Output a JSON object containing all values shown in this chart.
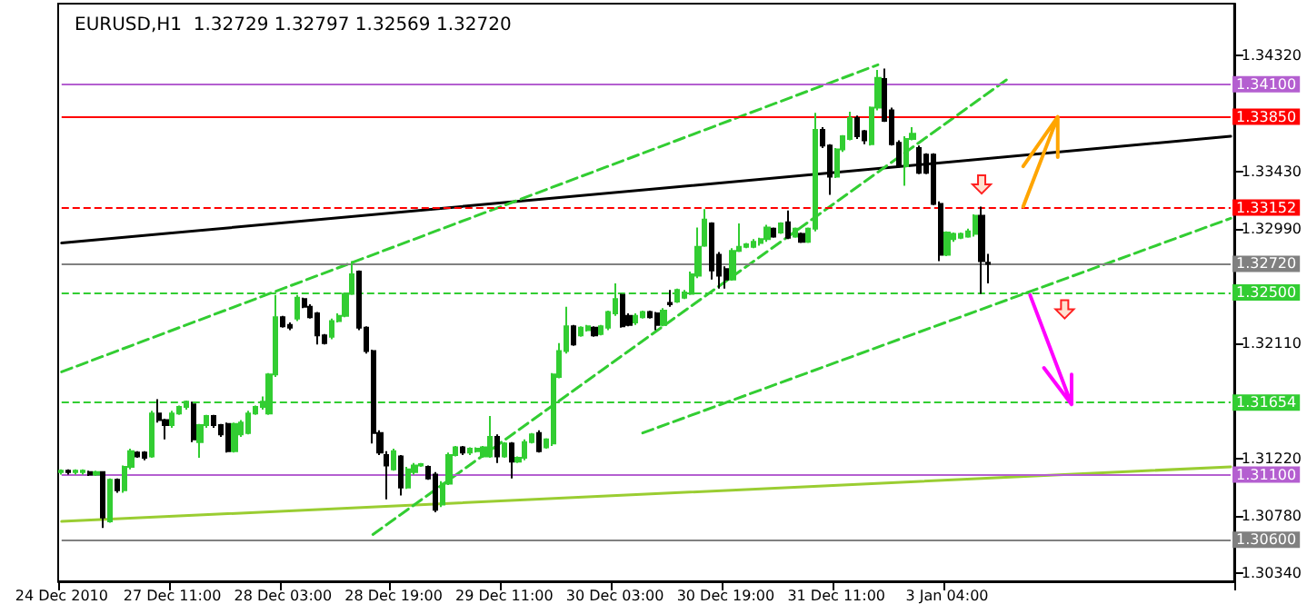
{
  "chart_data": {
    "type": "candlestick",
    "title": "EURUSD,H1  1.32729 1.32797 1.32569 1.32720",
    "categories": [
      "24 Dec 2010",
      null,
      null,
      null,
      null,
      null,
      null,
      null,
      null,
      null,
      null,
      null,
      null,
      null,
      null,
      null,
      "27 Dec 11:00",
      null,
      null,
      null,
      null,
      null,
      null,
      null,
      null,
      null,
      null,
      null,
      null,
      null,
      null,
      null,
      "28 Dec 03:00",
      null,
      null,
      null,
      null,
      null,
      null,
      null,
      null,
      null,
      null,
      null,
      null,
      null,
      null,
      null,
      "28 Dec 19:00",
      null,
      null,
      null,
      null,
      null,
      null,
      null,
      null,
      null,
      null,
      null,
      null,
      null,
      null,
      null,
      "29 Dec 11:00",
      null,
      null,
      null,
      null,
      null,
      null,
      null,
      null,
      null,
      null,
      null,
      null,
      null,
      null,
      null,
      "30 Dec 03:00",
      null,
      null,
      null,
      null,
      null,
      null,
      null,
      null,
      null,
      null,
      null,
      null,
      null,
      null,
      null,
      "30 Dec 19:00",
      null,
      null,
      null,
      null,
      null,
      null,
      null,
      null,
      null,
      null,
      null,
      null,
      null,
      null,
      null,
      "31 Dec 11:00",
      null,
      null,
      null,
      null,
      null,
      null,
      null,
      null,
      null,
      null,
      null,
      null,
      null,
      null,
      null,
      "3 Jan 04:00",
      null,
      null,
      null,
      null,
      null,
      null,
      null,
      null,
      null,
      null,
      null,
      null,
      null,
      null,
      null,
      null,
      null,
      null,
      null,
      null,
      null,
      null,
      null,
      null,
      null,
      null,
      null,
      null,
      null,
      null,
      null,
      null,
      null,
      null,
      null,
      null,
      null,
      null,
      null,
      null,
      null
    ],
    "ohlc": [
      [
        1.3112,
        1.3114,
        1.311,
        1.3113
      ],
      [
        1.3113,
        1.3114,
        1.311,
        1.3112
      ],
      [
        1.3112,
        1.3114,
        1.311,
        1.3113
      ],
      [
        1.3112,
        1.3114,
        1.311,
        1.3113
      ],
      [
        1.3112,
        1.3113,
        1.3109,
        1.311
      ],
      [
        1.311,
        1.3113,
        1.3109,
        1.3112
      ],
      [
        1.3112,
        1.3112,
        1.3069,
        1.3077
      ],
      [
        1.3074,
        1.3107,
        1.3073,
        1.3106
      ],
      [
        1.3106,
        1.3107,
        1.3096,
        1.3098
      ],
      [
        1.3098,
        1.3117,
        1.3096,
        1.3116
      ],
      [
        1.3116,
        1.313,
        1.3114,
        1.3128
      ],
      [
        1.3127,
        1.3128,
        1.3123,
        1.3124
      ],
      [
        1.3127,
        1.3128,
        1.3121,
        1.3123
      ],
      [
        1.3124,
        1.3159,
        1.3123,
        1.3157
      ],
      [
        1.3157,
        1.3168,
        1.315,
        1.3152
      ],
      [
        1.3152,
        1.3153,
        1.3137,
        1.3148
      ],
      [
        1.3148,
        1.3159,
        1.3146,
        1.3157
      ],
      [
        1.3157,
        1.3163,
        1.3156,
        1.3162
      ],
      [
        1.3162,
        1.3167,
        1.316,
        1.3166
      ],
      [
        1.3164,
        1.3166,
        1.3135,
        1.3137
      ],
      [
        1.3135,
        1.3149,
        1.3123,
        1.3148
      ],
      [
        1.3148,
        1.3156,
        1.3146,
        1.3155
      ],
      [
        1.3155,
        1.3156,
        1.3146,
        1.3148
      ],
      [
        1.3148,
        1.3149,
        1.3139,
        1.3141
      ],
      [
        1.3149,
        1.315,
        1.3127,
        1.3128
      ],
      [
        1.3128,
        1.315,
        1.3127,
        1.3149
      ],
      [
        1.3141,
        1.3152,
        1.3139,
        1.315
      ],
      [
        1.3142,
        1.3159,
        1.3141,
        1.3157
      ],
      [
        1.3157,
        1.3163,
        1.3156,
        1.3162
      ],
      [
        1.3162,
        1.317,
        1.316,
        1.3166
      ],
      [
        1.3157,
        1.3188,
        1.3156,
        1.3187
      ],
      [
        1.3187,
        1.3248,
        1.3185,
        1.3231
      ],
      [
        1.3231,
        1.3232,
        1.3223,
        1.3224
      ],
      [
        1.3225,
        1.3227,
        1.3221,
        1.3223
      ],
      [
        1.323,
        1.3248,
        1.3228,
        1.3246
      ],
      [
        1.3245,
        1.3246,
        1.3238,
        1.3239
      ],
      [
        1.3239,
        1.3241,
        1.323,
        1.3231
      ],
      [
        1.3234,
        1.3235,
        1.321,
        1.3217
      ],
      [
        1.3217,
        1.3218,
        1.321,
        1.3211
      ],
      [
        1.3216,
        1.323,
        1.3214,
        1.3228
      ],
      [
        1.3228,
        1.3234,
        1.3227,
        1.3232
      ],
      [
        1.3232,
        1.325,
        1.3231,
        1.3249
      ],
      [
        1.3249,
        1.3274,
        1.3248,
        1.3264
      ],
      [
        1.3266,
        1.3267,
        1.3221,
        1.3223
      ],
      [
        1.3223,
        1.3224,
        1.3203,
        1.3205
      ],
      [
        1.3205,
        1.3206,
        1.3134,
        1.3142
      ],
      [
        1.3142,
        1.3144,
        1.3125,
        1.3127
      ],
      [
        1.3125,
        1.3128,
        1.3091,
        1.3117
      ],
      [
        1.3114,
        1.313,
        1.3113,
        1.3128
      ],
      [
        1.3124,
        1.3125,
        1.3094,
        1.31
      ],
      [
        1.31,
        1.3116,
        1.3099,
        1.3114
      ],
      [
        1.3112,
        1.3119,
        1.311,
        1.3117
      ],
      [
        1.3117,
        1.3119,
        1.3116,
        1.3118
      ],
      [
        1.3116,
        1.3117,
        1.3106,
        1.3107
      ],
      [
        1.311,
        1.3112,
        1.3081,
        1.3083
      ],
      [
        1.3087,
        1.3105,
        1.3085,
        1.3103
      ],
      [
        1.3103,
        1.3127,
        1.3102,
        1.3125
      ],
      [
        1.3125,
        1.3132,
        1.3124,
        1.3131
      ],
      [
        1.3131,
        1.3132,
        1.3125,
        1.3127
      ],
      [
        1.3127,
        1.3131,
        1.3125,
        1.313
      ],
      [
        1.3128,
        1.3131,
        1.3127,
        1.313
      ],
      [
        1.3124,
        1.3132,
        1.3123,
        1.3131
      ],
      [
        1.3124,
        1.3155,
        1.3123,
        1.3139
      ],
      [
        1.3139,
        1.3141,
        1.3119,
        1.3124
      ],
      [
        1.3124,
        1.3135,
        1.3123,
        1.3134
      ],
      [
        1.3134,
        1.3135,
        1.3107,
        1.312
      ],
      [
        1.312,
        1.3124,
        1.3119,
        1.3123
      ],
      [
        1.3123,
        1.3137,
        1.3121,
        1.3135
      ],
      [
        1.3135,
        1.3142,
        1.3134,
        1.3141
      ],
      [
        1.3142,
        1.3144,
        1.3127,
        1.3128
      ],
      [
        1.3131,
        1.3138,
        1.313,
        1.3137
      ],
      [
        1.3134,
        1.3188,
        1.3132,
        1.3187
      ],
      [
        1.3185,
        1.3211,
        1.3184,
        1.3205
      ],
      [
        1.3205,
        1.3239,
        1.3203,
        1.3224
      ],
      [
        1.3224,
        1.3225,
        1.3209,
        1.321
      ],
      [
        1.3217,
        1.3224,
        1.3216,
        1.3223
      ],
      [
        1.3221,
        1.3225,
        1.322,
        1.3224
      ],
      [
        1.3223,
        1.3224,
        1.3216,
        1.3217
      ],
      [
        1.3218,
        1.3225,
        1.3217,
        1.3224
      ],
      [
        1.3223,
        1.3236,
        1.3221,
        1.3235
      ],
      [
        1.3234,
        1.3257,
        1.3232,
        1.3245
      ],
      [
        1.3248,
        1.3249,
        1.3223,
        1.3224
      ],
      [
        1.3232,
        1.3234,
        1.3224,
        1.3225
      ],
      [
        1.3227,
        1.3234,
        1.3225,
        1.3232
      ],
      [
        1.3231,
        1.3236,
        1.323,
        1.3235
      ],
      [
        1.3235,
        1.3236,
        1.323,
        1.3231
      ],
      [
        1.3234,
        1.3235,
        1.3221,
        1.3225
      ],
      [
        1.3225,
        1.3238,
        1.3224,
        1.3236
      ],
      [
        1.3242,
        1.3252,
        1.3239,
        1.3241
      ],
      [
        1.3243,
        1.3253,
        1.3242,
        1.3252
      ],
      [
        1.3246,
        1.3252,
        1.3245,
        1.325
      ],
      [
        1.3249,
        1.3266,
        1.3248,
        1.3264
      ],
      [
        1.3263,
        1.33,
        1.3261,
        1.3285
      ],
      [
        1.3286,
        1.3314,
        1.3285,
        1.3306
      ],
      [
        1.3303,
        1.3304,
        1.326,
        1.3267
      ],
      [
        1.3279,
        1.3281,
        1.3253,
        1.3263
      ],
      [
        1.3268,
        1.327,
        1.3253,
        1.326
      ],
      [
        1.326,
        1.3284,
        1.3259,
        1.3282
      ],
      [
        1.3282,
        1.3303,
        1.3281,
        1.3285
      ],
      [
        1.3285,
        1.3288,
        1.3284,
        1.3287
      ],
      [
        1.3285,
        1.3291,
        1.3284,
        1.3289
      ],
      [
        1.3288,
        1.3292,
        1.3286,
        1.3291
      ],
      [
        1.3291,
        1.3302,
        1.3289,
        1.33
      ],
      [
        1.3299,
        1.33,
        1.3292,
        1.3293
      ],
      [
        1.3296,
        1.3304,
        1.3295,
        1.3303
      ],
      [
        1.3304,
        1.3313,
        1.3291,
        1.3292
      ],
      [
        1.3293,
        1.33,
        1.3292,
        1.3299
      ],
      [
        1.3295,
        1.3296,
        1.3288,
        1.3289
      ],
      [
        1.3289,
        1.33,
        1.3288,
        1.3299
      ],
      [
        1.3299,
        1.3388,
        1.3297,
        1.3375
      ],
      [
        1.3375,
        1.3377,
        1.3361,
        1.3363
      ],
      [
        1.3363,
        1.3364,
        1.3325,
        1.3339
      ],
      [
        1.3339,
        1.3361,
        1.3338,
        1.336
      ],
      [
        1.336,
        1.3371,
        1.3358,
        1.337
      ],
      [
        1.3368,
        1.3389,
        1.3367,
        1.3384
      ],
      [
        1.3384,
        1.3386,
        1.3368,
        1.337
      ],
      [
        1.3374,
        1.3375,
        1.3364,
        1.3367
      ],
      [
        1.3364,
        1.3393,
        1.3363,
        1.3392
      ],
      [
        1.3392,
        1.3421,
        1.339,
        1.3415
      ],
      [
        1.3414,
        1.3422,
        1.3381,
        1.3382
      ],
      [
        1.339,
        1.3392,
        1.3363,
        1.3364
      ],
      [
        1.3365,
        1.3367,
        1.3346,
        1.3347
      ],
      [
        1.3347,
        1.337,
        1.3332,
        1.3368
      ],
      [
        1.3368,
        1.3377,
        1.3367,
        1.3372
      ],
      [
        1.3361,
        1.3363,
        1.3341,
        1.3342
      ],
      [
        1.3356,
        1.3357,
        1.3341,
        1.3342
      ],
      [
        1.3356,
        1.3357,
        1.3317,
        1.3318
      ],
      [
        1.3318,
        1.332,
        1.3274,
        1.3279
      ],
      [
        1.3279,
        1.3297,
        1.3278,
        1.3296
      ],
      [
        1.3291,
        1.3296,
        1.3289,
        1.3295
      ],
      [
        1.3292,
        1.3296,
        1.3291,
        1.3295
      ],
      [
        1.3293,
        1.3299,
        1.3292,
        1.3297
      ],
      [
        1.3295,
        1.331,
        1.3293,
        1.3309
      ],
      [
        1.3309,
        1.3316,
        1.3249,
        1.3274
      ],
      [
        1.32729,
        1.32797,
        1.32569,
        1.3272
      ],
      null,
      null,
      null,
      null,
      null,
      null,
      null,
      null,
      null,
      null,
      null,
      null,
      null,
      null,
      null,
      null,
      null,
      null,
      null,
      null,
      null,
      null,
      null,
      null,
      null,
      null,
      null,
      null,
      null,
      null,
      null,
      null,
      null,
      null,
      null
    ],
    "colors": [
      "#32cd32",
      "#000000",
      "#32cd32",
      "#32cd32",
      "#000000",
      "#32cd32",
      "#000000",
      "#32cd32",
      "#000000",
      "#32cd32",
      "#32cd32",
      "#000000",
      "#000000",
      "#32cd32",
      "#000000",
      "#000000",
      "#32cd32",
      "#32cd32",
      "#32cd32",
      "#000000",
      "#32cd32",
      "#32cd32",
      "#000000",
      "#000000",
      "#000000",
      "#32cd32",
      "#32cd32",
      "#32cd32",
      "#32cd32",
      "#32cd32",
      "#32cd32",
      "#32cd32",
      "#000000",
      "#000000",
      "#32cd32",
      "#000000",
      "#000000",
      "#000000",
      "#000000",
      "#32cd32",
      "#32cd32",
      "#32cd32",
      "#32cd32",
      "#000000",
      "#000000",
      "#000000",
      "#000000",
      "#000000",
      "#32cd32",
      "#000000",
      "#32cd32",
      "#32cd32",
      "#32cd32",
      "#000000",
      "#000000",
      "#32cd32",
      "#32cd32",
      "#32cd32",
      "#000000",
      "#32cd32",
      "#32cd32",
      "#32cd32",
      "#32cd32",
      "#000000",
      "#32cd32",
      "#000000",
      "#32cd32",
      "#32cd32",
      "#32cd32",
      "#000000",
      "#32cd32",
      "#32cd32",
      "#32cd32",
      "#32cd32",
      "#000000",
      "#32cd32",
      "#32cd32",
      "#000000",
      "#32cd32",
      "#32cd32",
      "#32cd32",
      "#000000",
      "#000000",
      "#32cd32",
      "#32cd32",
      "#000000",
      "#000000",
      "#32cd32",
      "#000000",
      "#32cd32",
      "#32cd32",
      "#32cd32",
      "#32cd32",
      "#32cd32",
      "#000000",
      "#000000",
      "#000000",
      "#32cd32",
      "#32cd32",
      "#32cd32",
      "#32cd32",
      "#32cd32",
      "#32cd32",
      "#000000",
      "#32cd32",
      "#000000",
      "#32cd32",
      "#000000",
      "#32cd32",
      "#32cd32",
      "#000000",
      "#000000",
      "#32cd32",
      "#32cd32",
      "#32cd32",
      "#000000",
      "#000000",
      "#32cd32",
      "#32cd32",
      "#000000",
      "#000000",
      "#000000",
      "#32cd32",
      "#32cd32",
      "#000000",
      "#000000",
      "#000000",
      "#000000",
      "#32cd32",
      "#32cd32",
      "#32cd32",
      "#32cd32",
      "#32cd32",
      "#000000",
      "#000000",
      null,
      null,
      null,
      null,
      null,
      null,
      null,
      null,
      null,
      null,
      null,
      null,
      null,
      null,
      null,
      null,
      null,
      null,
      null,
      null,
      null,
      null,
      null,
      null,
      null,
      null,
      null,
      null,
      null,
      null,
      null,
      null,
      null,
      null,
      null
    ],
    "series": [
      {
        "type": "line",
        "color": "#000000",
        "line_style": "solid",
        "values": [
          1.3288,
          null,
          null,
          null,
          null,
          null,
          null,
          null,
          null,
          null,
          null,
          null,
          null,
          null,
          null,
          null,
          null,
          null,
          null,
          null,
          null,
          null,
          null,
          null,
          null,
          null,
          null,
          null,
          null,
          null,
          null,
          null,
          null,
          null,
          null,
          null,
          null,
          null,
          null,
          null,
          null,
          null,
          null,
          null,
          null,
          null,
          null,
          null,
          null,
          null,
          null,
          null,
          null,
          null,
          null,
          null,
          null,
          null,
          null,
          null,
          null,
          null,
          null,
          null,
          null,
          null,
          null,
          null,
          null,
          null,
          null,
          null,
          null,
          null,
          null,
          null,
          null,
          null,
          null,
          null,
          null,
          null,
          null,
          null,
          null,
          null,
          null,
          null,
          null,
          null,
          null,
          null,
          null,
          null,
          null,
          null,
          null,
          null,
          null,
          null,
          null,
          null,
          null,
          null,
          null,
          null,
          null,
          null,
          null,
          null,
          null,
          null,
          null,
          null,
          null,
          null,
          null,
          null,
          null,
          null,
          null,
          null,
          null,
          null,
          null,
          null,
          null,
          null,
          null,
          null,
          null,
          null,
          null,
          null,
          null,
          null,
          null,
          null,
          null,
          null,
          null,
          null,
          null,
          null,
          null,
          null,
          null,
          null,
          null,
          null,
          null,
          null,
          null,
          null,
          null,
          null,
          null,
          null,
          null,
          null,
          null,
          null,
          null,
          null,
          null,
          null,
          null,
          null,
          null,
          1.337
        ]
      },
      {
        "type": "line",
        "color": "#9acd32",
        "line_style": "solid",
        "values": [
          1.3074,
          null,
          null,
          null,
          null,
          null,
          null,
          null,
          null,
          null,
          null,
          null,
          null,
          null,
          null,
          null,
          null,
          null,
          null,
          null,
          null,
          null,
          null,
          null,
          null,
          null,
          null,
          null,
          null,
          null,
          null,
          null,
          null,
          null,
          null,
          null,
          null,
          null,
          null,
          null,
          null,
          null,
          null,
          null,
          null,
          null,
          null,
          null,
          null,
          null,
          null,
          null,
          null,
          null,
          null,
          null,
          null,
          null,
          null,
          null,
          null,
          null,
          null,
          null,
          null,
          null,
          null,
          null,
          null,
          null,
          null,
          null,
          null,
          null,
          null,
          null,
          null,
          null,
          null,
          null,
          null,
          null,
          null,
          null,
          null,
          null,
          null,
          null,
          null,
          null,
          null,
          null,
          null,
          null,
          null,
          null,
          null,
          null,
          null,
          null,
          null,
          null,
          null,
          null,
          null,
          null,
          null,
          null,
          null,
          null,
          null,
          null,
          null,
          null,
          null,
          null,
          null,
          null,
          null,
          null,
          null,
          null,
          null,
          null,
          null,
          null,
          null,
          null,
          null,
          null,
          null,
          null,
          null,
          null,
          null,
          null,
          null,
          null,
          null,
          null,
          null,
          null,
          null,
          null,
          null,
          null,
          null,
          null,
          null,
          null,
          null,
          null,
          null,
          null,
          null,
          null,
          null,
          null,
          null,
          null,
          null,
          null,
          null,
          null,
          null,
          null,
          null,
          null,
          null,
          1.3116
        ]
      },
      {
        "type": "line",
        "color": "#32cd32",
        "line_style": "dashed",
        "values": [
          1.3189,
          null,
          null,
          null,
          null,
          null,
          null,
          null,
          null,
          null,
          null,
          null,
          null,
          null,
          null,
          null,
          null,
          null,
          null,
          null,
          null,
          null,
          null,
          null,
          null,
          null,
          null,
          null,
          null,
          null,
          null,
          null,
          null,
          null,
          null,
          null,
          null,
          null,
          null,
          null,
          null,
          null,
          null,
          null,
          null,
          null,
          null,
          null,
          null,
          null,
          null,
          null,
          null,
          null,
          null,
          null,
          null,
          null,
          null,
          null,
          null,
          null,
          null,
          null,
          null,
          null,
          null,
          null,
          null,
          null,
          null,
          null,
          null,
          null,
          null,
          null,
          null,
          null,
          null,
          null,
          null,
          null,
          null,
          null,
          null,
          null,
          null,
          null,
          null,
          null,
          null,
          null,
          null,
          null,
          null,
          null,
          null,
          null,
          null,
          null,
          null,
          null,
          null,
          null,
          null,
          null,
          null,
          null,
          null,
          null,
          null,
          null,
          null,
          null,
          null,
          null,
          null,
          null,
          1.3425,
          null,
          null,
          null,
          null,
          null,
          null,
          null,
          null,
          null,
          null,
          null,
          null,
          null,
          null,
          null,
          null,
          null,
          null,
          null,
          null,
          null,
          null,
          null,
          null,
          null,
          null,
          null,
          null,
          null,
          null,
          null,
          null,
          null,
          null,
          null,
          null,
          null,
          null,
          null,
          null,
          null,
          null,
          null,
          null,
          null,
          null,
          null,
          null,
          null,
          null,
          null
        ]
      },
      {
        "type": "line",
        "color": "#32cd32",
        "line_style": "dashed",
        "values": [
          null,
          null,
          null,
          null,
          null,
          null,
          null,
          null,
          null,
          null,
          null,
          null,
          null,
          null,
          null,
          null,
          null,
          null,
          null,
          null,
          null,
          null,
          null,
          null,
          null,
          null,
          null,
          null,
          null,
          null,
          null,
          null,
          null,
          null,
          null,
          null,
          null,
          null,
          null,
          null,
          null,
          null,
          null,
          null,
          null,
          1.3064,
          null,
          null,
          null,
          null,
          null,
          null,
          null,
          null,
          null,
          null,
          null,
          null,
          null,
          null,
          null,
          null,
          null,
          null,
          null,
          null,
          null,
          null,
          null,
          null,
          null,
          null,
          null,
          null,
          null,
          null,
          null,
          null,
          null,
          null,
          null,
          null,
          null,
          null,
          null,
          null,
          null,
          null,
          null,
          null,
          null,
          null,
          null,
          null,
          null,
          null,
          null,
          null,
          null,
          null,
          null,
          null,
          null,
          null,
          null,
          null,
          null,
          null,
          null,
          null,
          null,
          null,
          null,
          null,
          null,
          null,
          null,
          null,
          null,
          null,
          null,
          null,
          null,
          null,
          null,
          null,
          null,
          null,
          null,
          null,
          null,
          null,
          null,
          null,
          null,
          null,
          null,
          1.3415,
          null,
          null,
          null,
          null,
          null,
          null,
          null,
          null,
          null,
          null,
          null,
          null,
          null,
          null,
          null,
          null,
          null,
          null,
          null,
          null,
          null,
          null,
          null,
          null,
          null,
          null,
          null,
          null,
          null,
          null,
          null,
          null
        ]
      },
      {
        "type": "line",
        "color": "#32cd32",
        "line_style": "dashed",
        "values": [
          null,
          null,
          null,
          null,
          null,
          null,
          null,
          null,
          null,
          null,
          null,
          null,
          null,
          null,
          null,
          null,
          null,
          null,
          null,
          null,
          null,
          null,
          null,
          null,
          null,
          null,
          null,
          null,
          null,
          null,
          null,
          null,
          null,
          null,
          null,
          null,
          null,
          null,
          null,
          null,
          null,
          null,
          null,
          null,
          null,
          null,
          null,
          null,
          null,
          null,
          null,
          null,
          null,
          null,
          null,
          null,
          null,
          null,
          null,
          null,
          null,
          null,
          null,
          null,
          null,
          null,
          null,
          null,
          null,
          null,
          null,
          null,
          null,
          null,
          null,
          null,
          null,
          null,
          null,
          null,
          null,
          null,
          null,
          null,
          1.3142,
          null,
          null,
          null,
          null,
          null,
          null,
          null,
          null,
          null,
          null,
          null,
          null,
          null,
          null,
          null,
          null,
          null,
          null,
          null,
          null,
          null,
          null,
          null,
          null,
          null,
          null,
          null,
          null,
          null,
          null,
          null,
          null,
          null,
          null,
          null,
          null,
          null,
          null,
          null,
          null,
          null,
          null,
          null,
          null,
          null,
          null,
          null,
          null,
          null,
          null,
          null,
          null,
          null,
          null,
          null,
          null,
          null,
          null,
          null,
          null,
          null,
          null,
          null,
          null,
          null,
          null,
          null,
          null,
          null,
          null,
          null,
          null,
          null,
          null,
          null,
          null,
          null,
          null,
          null,
          null,
          null,
          null,
          null,
          null,
          1.3307
        ]
      }
    ],
    "ref_lines": [
      {
        "axis": "y",
        "value": 1.341,
        "label": "1.34100",
        "color": "#b45fd0",
        "line_style": "solid"
      },
      {
        "axis": "y",
        "value": 1.3385,
        "label": "1.33850",
        "color": "#ff0000",
        "line_style": "solid"
      },
      {
        "axis": "y",
        "value": 1.33152,
        "label": "1.33152",
        "color": "#ff0000",
        "line_style": "dashed"
      },
      {
        "axis": "y",
        "value": 1.3272,
        "label": "1.32720",
        "color": "#808080",
        "line_style": "solid"
      },
      {
        "axis": "y",
        "value": 1.325,
        "label": "1.32500",
        "color": "#32cd32",
        "line_style": "dashed"
      },
      {
        "axis": "y",
        "value": 1.31654,
        "label": "1.31654",
        "color": "#32cd32",
        "line_style": "dashed"
      },
      {
        "axis": "y",
        "value": 1.311,
        "label": "1.31100",
        "color": "#b45fd0",
        "line_style": "solid"
      },
      {
        "axis": "y",
        "value": 1.306,
        "label": "1.30600",
        "color": "#808080",
        "line_style": "solid"
      }
    ],
    "ylim": [
      1.3028,
      1.3472
    ],
    "yticks": [
      {
        "value": 1.3034,
        "label": "1.30340"
      },
      {
        "value": 1.3078,
        "label": "1.30780"
      },
      {
        "value": 1.3122,
        "label": "1.31220"
      },
      {
        "value": 1.3211,
        "label": "1.32110"
      },
      {
        "value": 1.3299,
        "label": "1.32990"
      },
      {
        "value": 1.3343,
        "label": "1.33430"
      },
      {
        "value": 1.3432,
        "label": "1.34320"
      }
    ],
    "grid": false
  }
}
